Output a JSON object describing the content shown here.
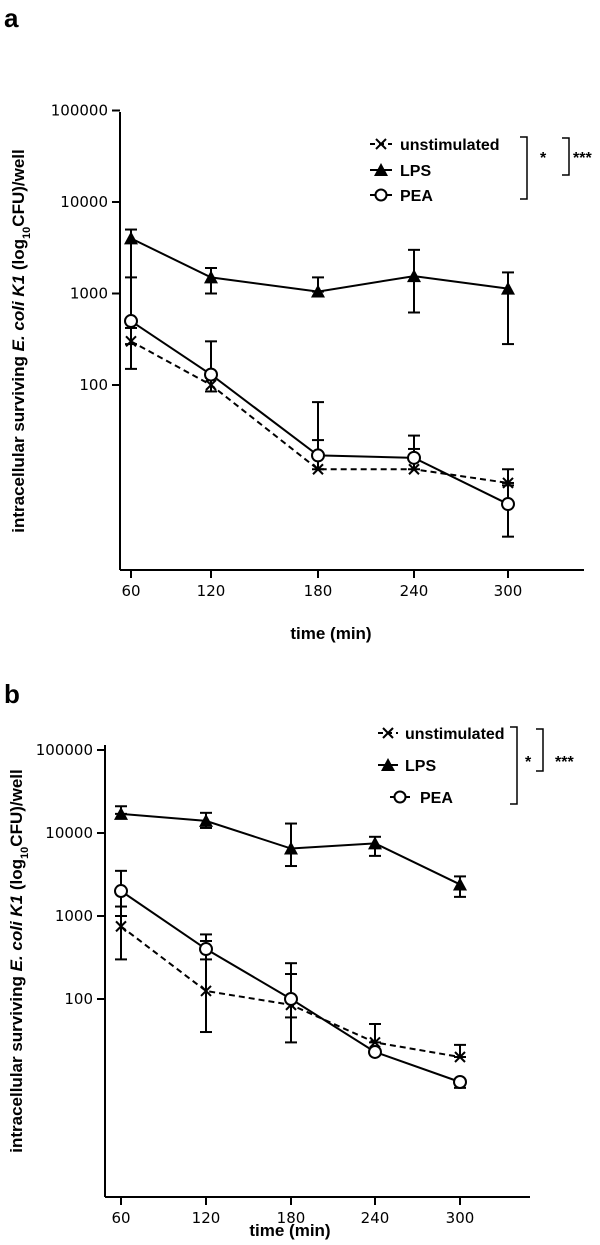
{
  "panels": [
    {
      "label": "a"
    },
    {
      "label": "b"
    }
  ],
  "chart_data": [
    {
      "type": "line",
      "panel": "a",
      "xlabel": "time (min)",
      "ylabel_parts": [
        "intracellular surviving ",
        "E. coli K1",
        " (log",
        "10",
        "CFU)/well"
      ],
      "x": [
        60,
        120,
        180,
        240,
        300
      ],
      "x_tick_labels": [
        "60",
        "120",
        "180",
        "240",
        "300"
      ],
      "y_tick_labels": [
        "100",
        "1000",
        "10000",
        "100000"
      ],
      "y_tick_values": [
        100,
        1000,
        10000,
        100000
      ],
      "y_scale": "log",
      "ylim": [
        1,
        100000
      ],
      "series": [
        {
          "name": "unstimulated",
          "marker": "x",
          "dash": true,
          "values": [
            300,
            100,
            12,
            12,
            8.5
          ],
          "err_high": [
            1500,
            120,
            25,
            20,
            12
          ],
          "err_low": [
            150,
            85,
            12,
            12,
            8.5
          ]
        },
        {
          "name": "LPS",
          "marker": "triangle",
          "dash": false,
          "values": [
            4000,
            1500,
            1050,
            1550,
            1130
          ],
          "err_high": [
            5000,
            1900,
            1500,
            3000,
            1700
          ],
          "err_low": [
            280,
            1000,
            1050,
            620,
            280
          ]
        },
        {
          "name": "PEA",
          "marker": "circle",
          "dash": false,
          "values": [
            500,
            130,
            17,
            16,
            5
          ],
          "err_high": [
            500,
            300,
            65,
            28,
            8
          ],
          "err_low": [
            420,
            130,
            17,
            16,
            2.2
          ]
        }
      ],
      "significance": [
        "*",
        "***"
      ],
      "legend": "top-right"
    },
    {
      "type": "line",
      "panel": "b",
      "xlabel": "time (min)",
      "ylabel_parts": [
        "intracellular surviving ",
        "E. coli K1",
        " (log",
        "10",
        "CFU)/well"
      ],
      "x": [
        60,
        120,
        180,
        240,
        300
      ],
      "x_tick_labels": [
        "60",
        "120",
        "180",
        "240",
        "300"
      ],
      "y_tick_labels": [
        "100",
        "1000",
        "10000",
        "100000"
      ],
      "y_tick_values": [
        100,
        1000,
        10000,
        100000
      ],
      "y_scale": "log",
      "ylim": [
        1,
        100000
      ],
      "series": [
        {
          "name": "unstimulated",
          "marker": "x",
          "dash": true,
          "values": [
            750,
            125,
            85,
            30,
            20
          ],
          "err_high": [
            1300,
            500,
            200,
            50,
            28
          ],
          "err_low": [
            300,
            40,
            60,
            30,
            20
          ]
        },
        {
          "name": "LPS",
          "marker": "triangle",
          "dash": false,
          "values": [
            17000,
            14000,
            6500,
            7500,
            2400
          ],
          "err_high": [
            21000,
            17500,
            13000,
            9000,
            3000
          ],
          "err_low": [
            17000,
            11500,
            4000,
            5300,
            1700
          ]
        },
        {
          "name": "PEA",
          "marker": "circle",
          "dash": false,
          "values": [
            2000,
            400,
            100,
            23,
            10
          ],
          "err_high": [
            3500,
            600,
            270,
            23,
            10
          ],
          "err_low": [
            1000,
            300,
            30,
            23,
            8.5
          ]
        }
      ],
      "significance": [
        "*",
        "***"
      ],
      "legend": "top-right"
    }
  ]
}
